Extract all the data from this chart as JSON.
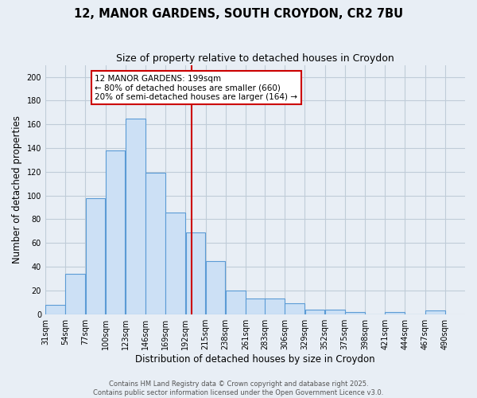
{
  "title": "12, MANOR GARDENS, SOUTH CROYDON, CR2 7BU",
  "subtitle": "Size of property relative to detached houses in Croydon",
  "xlabel": "Distribution of detached houses by size in Croydon",
  "ylabel": "Number of detached properties",
  "bar_left_edges": [
    31,
    54,
    77,
    100,
    123,
    146,
    169,
    192,
    215,
    238,
    261,
    283,
    306,
    329,
    352,
    375,
    398,
    421,
    444,
    467
  ],
  "bar_heights": [
    8,
    34,
    98,
    138,
    165,
    119,
    86,
    69,
    45,
    20,
    13,
    13,
    9,
    4,
    4,
    2,
    0,
    2,
    0,
    3
  ],
  "bin_width": 23,
  "bar_facecolor": "#cce0f5",
  "bar_edgecolor": "#5b9bd5",
  "vline_x": 199,
  "vline_color": "#cc0000",
  "annotation_line1": "12 MANOR GARDENS: 199sqm",
  "annotation_line2": "← 80% of detached houses are smaller (660)",
  "annotation_line3": "20% of semi-detached houses are larger (164) →",
  "annotation_box_edgecolor": "#cc0000",
  "annotation_bg": "#ffffff",
  "ylim": [
    0,
    210
  ],
  "yticks": [
    0,
    20,
    40,
    60,
    80,
    100,
    120,
    140,
    160,
    180,
    200
  ],
  "tick_labels": [
    "31sqm",
    "54sqm",
    "77sqm",
    "100sqm",
    "123sqm",
    "146sqm",
    "169sqm",
    "192sqm",
    "215sqm",
    "238sqm",
    "261sqm",
    "283sqm",
    "306sqm",
    "329sqm",
    "352sqm",
    "375sqm",
    "398sqm",
    "421sqm",
    "444sqm",
    "467sqm",
    "490sqm"
  ],
  "footer1": "Contains HM Land Registry data © Crown copyright and database right 2025.",
  "footer2": "Contains public sector information licensed under the Open Government Licence v3.0.",
  "background_color": "#e8eef5",
  "grid_color": "#c0ccd8",
  "title_fontsize": 10.5,
  "subtitle_fontsize": 9,
  "axis_label_fontsize": 8.5,
  "tick_fontsize": 7,
  "annotation_fontsize": 7.5,
  "footer_fontsize": 6
}
